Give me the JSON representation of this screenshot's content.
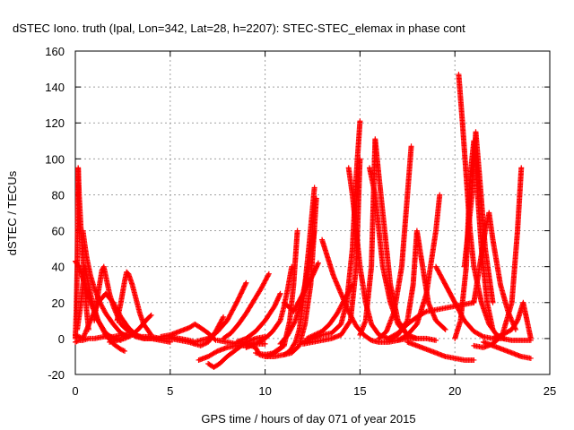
{
  "chart_data": {
    "type": "scatter",
    "title": "dSTEC Iono. truth (Ipal, Lon=342, Lat=28, h=2207): STEC-STEC_elemax in phase cont",
    "xlabel": "GPS time / hours of day 071 of year 2015",
    "ylabel": "dSTEC  / TECUs",
    "xlim": [
      0,
      25
    ],
    "ylim": [
      -20,
      160
    ],
    "x_ticks": [
      "0",
      "5",
      "10",
      "15",
      "20",
      "25"
    ],
    "y_ticks": [
      "-20",
      "0",
      "20",
      "40",
      "60",
      "80",
      "100",
      "120",
      "140",
      "160"
    ],
    "grid": true,
    "legend": "none",
    "marker": "plus",
    "color": "#ff0000",
    "series": [
      {
        "x": [
          0.0,
          0.2,
          0.4,
          0.7,
          1.0,
          1.5,
          2.0,
          2.5,
          3.0,
          3.5,
          4.0,
          4.5,
          5.0,
          5.5,
          6.0,
          6.3
        ],
        "y": [
          -2,
          -1,
          -1,
          0,
          0,
          1,
          1,
          2,
          2,
          1,
          1,
          0,
          0,
          -1,
          -2,
          -3
        ]
      },
      {
        "x": [
          0.0,
          0.05,
          0.1,
          0.15,
          0.2,
          0.3,
          0.4,
          0.5,
          0.6,
          0.7
        ],
        "y": [
          0,
          15,
          40,
          95,
          80,
          60,
          45,
          30,
          15,
          5
        ]
      },
      {
        "x": [
          0.0,
          0.2,
          0.5,
          0.8,
          1.2,
          1.6,
          2.0,
          2.4,
          2.6
        ],
        "y": [
          43,
          40,
          30,
          20,
          10,
          2,
          -3,
          -6,
          -7
        ]
      },
      {
        "x": [
          0.1,
          0.3,
          0.5,
          0.7,
          0.9,
          1.2,
          1.6,
          2.0,
          2.4
        ],
        "y": [
          5,
          20,
          40,
          30,
          20,
          10,
          3,
          0,
          -1
        ]
      },
      {
        "x": [
          0.0,
          0.4,
          0.8,
          1.2,
          1.6,
          2.0,
          2.4,
          2.8,
          3.2,
          3.6,
          4.0,
          4.5,
          5.0
        ],
        "y": [
          2,
          0,
          10,
          20,
          25,
          20,
          12,
          6,
          2,
          0,
          0,
          -1,
          -2
        ]
      },
      {
        "x": [
          0.4,
          0.5,
          0.6,
          0.8,
          1.0,
          1.3,
          1.6,
          2.0,
          2.4,
          2.8
        ],
        "y": [
          60,
          52,
          45,
          35,
          28,
          20,
          14,
          8,
          3,
          1
        ]
      },
      {
        "x": [
          1.0,
          1.2,
          1.4,
          1.5,
          1.6,
          1.8,
          2.0,
          2.4,
          2.8,
          3.2,
          3.6,
          4.0,
          4.5
        ],
        "y": [
          10,
          25,
          38,
          40,
          35,
          25,
          18,
          8,
          4,
          1,
          0,
          0,
          0
        ]
      },
      {
        "x": [
          2.2,
          2.4,
          2.6,
          2.7,
          2.8,
          3.0,
          3.2,
          3.4,
          3.6,
          4.0
        ],
        "y": [
          10,
          20,
          32,
          37,
          36,
          30,
          22,
          14,
          8,
          2
        ]
      },
      {
        "x": [
          1.8,
          2.2,
          2.6,
          3.0,
          3.4,
          3.8,
          4.0
        ],
        "y": [
          -2,
          -1,
          0,
          2,
          6,
          11,
          13
        ]
      },
      {
        "x": [
          4.5,
          5.0,
          5.5,
          6.0,
          6.3,
          6.6,
          7.0,
          7.2,
          7.4
        ],
        "y": [
          1,
          2,
          4,
          6,
          8,
          6,
          3,
          1,
          -1
        ]
      },
      {
        "x": [
          5.0,
          5.5,
          6.0,
          6.3,
          6.6,
          7.0,
          7.5,
          7.8
        ],
        "y": [
          1,
          0,
          -1,
          -2,
          -1,
          0,
          4,
          8
        ]
      },
      {
        "x": [
          6.0,
          6.3,
          6.6,
          7.0,
          7.3,
          7.6,
          7.8
        ],
        "y": [
          -2,
          -3,
          -4,
          -2,
          2,
          8,
          12
        ]
      },
      {
        "x": [
          6.5,
          7.0,
          7.5,
          8.0,
          8.5,
          9.0,
          9.5,
          10.0
        ],
        "y": [
          -12,
          -10,
          -7,
          -5,
          -4,
          -4,
          -3,
          -3
        ]
      },
      {
        "x": [
          7.0,
          7.3,
          7.6,
          8.0,
          8.5,
          9.0,
          9.5,
          10.0
        ],
        "y": [
          -14,
          -16,
          -14,
          -10,
          -6,
          -2,
          0,
          1
        ]
      },
      {
        "x": [
          7.5,
          8.0,
          8.5,
          9.0,
          9.5,
          9.7,
          10.0,
          10.3,
          10.7,
          11.0
        ],
        "y": [
          -1,
          -2,
          -3,
          -3,
          -5,
          -9,
          -10,
          -9,
          -6,
          -4
        ]
      },
      {
        "x": [
          7.0,
          7.5,
          8.0,
          8.5,
          9.0
        ],
        "y": [
          0,
          4,
          10,
          20,
          31
        ]
      },
      {
        "x": [
          7.8,
          8.2,
          8.6,
          9.0,
          9.4,
          9.8,
          10.2
        ],
        "y": [
          0,
          3,
          8,
          14,
          21,
          28,
          36
        ]
      },
      {
        "x": [
          8.5,
          9.0,
          9.5,
          10.0,
          10.5,
          10.8
        ],
        "y": [
          -2,
          0,
          4,
          10,
          18,
          25
        ]
      },
      {
        "x": [
          9.0,
          9.5,
          10.0,
          10.4,
          10.8,
          11.0,
          11.2,
          11.4
        ],
        "y": [
          -5,
          -3,
          0,
          4,
          10,
          18,
          28,
          40
        ]
      },
      {
        "x": [
          9.5,
          10.0,
          10.5,
          11.0,
          11.3,
          11.5,
          11.7
        ],
        "y": [
          -8,
          -9,
          -8,
          -4,
          10,
          30,
          60
        ]
      },
      {
        "x": [
          10.0,
          10.5,
          11.0,
          11.3,
          11.6,
          11.8,
          12.0,
          12.3,
          12.6
        ],
        "y": [
          -10,
          -10,
          -9,
          -7,
          -2,
          5,
          20,
          50,
          84
        ]
      },
      {
        "x": [
          10.8,
          11.2,
          11.6,
          12.0,
          12.3,
          12.6
        ],
        "y": [
          -3,
          2,
          10,
          25,
          40,
          60
        ]
      },
      {
        "x": [
          11.0,
          11.4,
          11.8,
          12.1,
          12.4,
          12.7
        ],
        "y": [
          -9,
          -8,
          -4,
          8,
          30,
          78
        ]
      },
      {
        "x": [
          11.0,
          11.5,
          12.0,
          12.5,
          12.8
        ],
        "y": [
          20,
          15,
          25,
          35,
          42
        ]
      },
      {
        "x": [
          12.0,
          12.5,
          13.0,
          13.5,
          14.0,
          14.3,
          14.6,
          14.8,
          15.0
        ],
        "y": [
          -2,
          0,
          2,
          3,
          8,
          20,
          50,
          90,
          121
        ]
      },
      {
        "x": [
          12.2,
          12.6,
          13.0,
          13.4,
          13.8,
          14.2,
          14.6
        ],
        "y": [
          0,
          2,
          4,
          8,
          14,
          22,
          30
        ]
      },
      {
        "x": [
          13.0,
          13.3,
          13.6,
          14.0,
          14.4,
          14.8,
          15.2,
          15.6,
          16.0,
          16.5,
          17.0,
          17.5,
          18.0,
          18.5,
          19.0
        ],
        "y": [
          55,
          45,
          35,
          25,
          15,
          7,
          2,
          -1,
          -2,
          -2,
          -1,
          0,
          0,
          0,
          -1
        ]
      },
      {
        "x": [
          12.0,
          12.5,
          13.0,
          13.5,
          14.0,
          14.5,
          14.8,
          15.0
        ],
        "y": [
          -3,
          -2,
          -1,
          0,
          2,
          10,
          40,
          100
        ]
      },
      {
        "x": [
          14.4,
          14.6,
          14.8,
          15.0,
          15.3,
          15.6,
          16.0,
          16.5
        ],
        "y": [
          95,
          80,
          60,
          40,
          20,
          8,
          2,
          0
        ]
      },
      {
        "x": [
          15.0,
          15.3,
          15.6,
          15.8,
          16.0,
          16.2,
          16.4,
          16.6,
          17.0,
          17.5
        ],
        "y": [
          2,
          10,
          40,
          111,
          90,
          70,
          50,
          30,
          10,
          2
        ]
      },
      {
        "x": [
          15.5,
          15.8,
          16.0,
          16.2,
          16.6,
          17.0,
          17.5,
          18.0
        ],
        "y": [
          95,
          80,
          60,
          40,
          20,
          8,
          2,
          0
        ]
      },
      {
        "x": [
          16.0,
          16.4,
          16.8,
          17.2,
          17.5,
          17.7
        ],
        "y": [
          0,
          4,
          15,
          40,
          80,
          107
        ]
      },
      {
        "x": [
          16.5,
          17.0,
          17.5,
          17.8,
          18.0,
          18.3,
          18.6,
          19.0,
          19.5
        ],
        "y": [
          -1,
          2,
          10,
          30,
          60,
          40,
          20,
          10,
          5
        ]
      },
      {
        "x": [
          17.0,
          17.5,
          18.0,
          18.5,
          19.0,
          19.2
        ],
        "y": [
          -1,
          2,
          8,
          25,
          60,
          80
        ]
      },
      {
        "x": [
          16.5,
          17.0,
          17.5,
          18.0,
          18.5,
          19.0,
          19.5,
          20.0,
          20.5,
          21.0
        ],
        "y": [
          0,
          3,
          8,
          12,
          15,
          16,
          17,
          18,
          19,
          20
        ]
      },
      {
        "x": [
          17.5,
          18.0,
          18.5,
          19.0,
          19.5,
          20.0,
          20.5,
          21.0
        ],
        "y": [
          -2,
          -4,
          -6,
          -8,
          -10,
          -11,
          -12,
          -12
        ]
      },
      {
        "x": [
          19.0,
          19.5,
          20.0,
          20.5,
          21.0,
          21.5,
          22.0,
          22.5,
          23.0,
          23.5,
          24.0
        ],
        "y": [
          40,
          30,
          20,
          10,
          4,
          1,
          0,
          0,
          -1,
          -1,
          -1
        ]
      },
      {
        "x": [
          20.0,
          20.3,
          20.6,
          20.8,
          21.0,
          21.2,
          21.4,
          21.7,
          22.0
        ],
        "y": [
          0,
          10,
          40,
          90,
          110,
          80,
          50,
          20,
          5
        ]
      },
      {
        "x": [
          20.2,
          20.4,
          20.6,
          20.8,
          21.0,
          21.4,
          21.8,
          22.2,
          22.6
        ],
        "y": [
          147,
          120,
          90,
          60,
          40,
          20,
          8,
          2,
          0
        ]
      },
      {
        "x": [
          20.5,
          20.7,
          20.9,
          21.1,
          21.3,
          21.6,
          22.0
        ],
        "y": [
          40,
          60,
          80,
          115,
          90,
          50,
          20
        ]
      },
      {
        "x": [
          21.0,
          21.3,
          21.6,
          21.8,
          22.0,
          22.4,
          22.8,
          23.2
        ],
        "y": [
          20,
          40,
          60,
          70,
          55,
          30,
          15,
          5
        ]
      },
      {
        "x": [
          21.0,
          21.5,
          22.0,
          22.5,
          23.0,
          23.3,
          23.5
        ],
        "y": [
          -4,
          -5,
          -3,
          2,
          20,
          60,
          95
        ]
      },
      {
        "x": [
          21.5,
          22.0,
          22.5,
          23.0,
          23.5,
          24.0
        ],
        "y": [
          -2,
          -4,
          -6,
          -8,
          -10,
          -11
        ]
      },
      {
        "x": [
          22.0,
          22.5,
          23.0,
          23.3,
          23.6,
          24.0
        ],
        "y": [
          0,
          2,
          5,
          10,
          20,
          0
        ]
      }
    ]
  }
}
